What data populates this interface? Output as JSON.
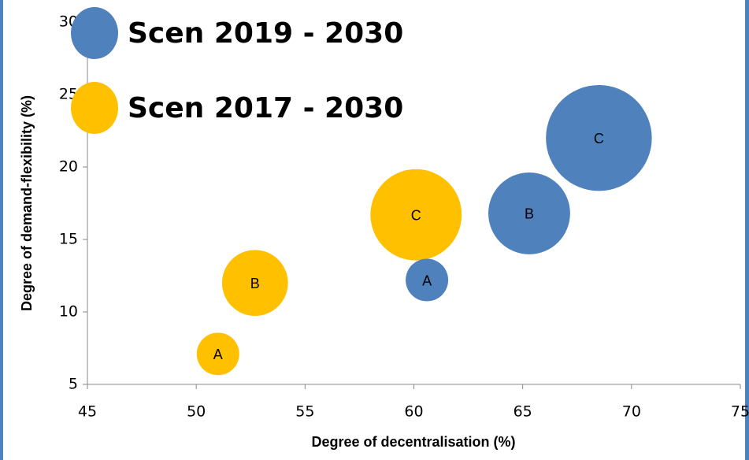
{
  "chart_data": {
    "type": "bubble",
    "x_label": "Degree of decentralisation (%)",
    "y_label": "Degree of demand-flexibility (%)",
    "xlim": [
      45,
      75
    ],
    "xticks": [
      45,
      50,
      55,
      60,
      65,
      70,
      75
    ],
    "ylim": [
      5,
      30
    ],
    "yticks": [
      5,
      10,
      15,
      20,
      25,
      30
    ],
    "legend": "upper-left",
    "series": [
      {
        "name": "Scen 2019 - 2030",
        "color": "#4f81bd",
        "point_labels": [
          "A",
          "B",
          "C"
        ],
        "x": [
          60.6,
          65.3,
          68.5
        ],
        "values": [
          12.2,
          16.8,
          22.0
        ],
        "sizes": [
          1.0,
          3.7,
          6.2
        ]
      },
      {
        "name": "Scen 2017 - 2030",
        "color": "#ffc000",
        "point_labels": [
          "A",
          "B",
          "C"
        ],
        "x": [
          51.0,
          52.7,
          60.1
        ],
        "values": [
          7.1,
          12.0,
          16.7
        ],
        "sizes": [
          1.0,
          2.4,
          4.6
        ]
      }
    ]
  }
}
